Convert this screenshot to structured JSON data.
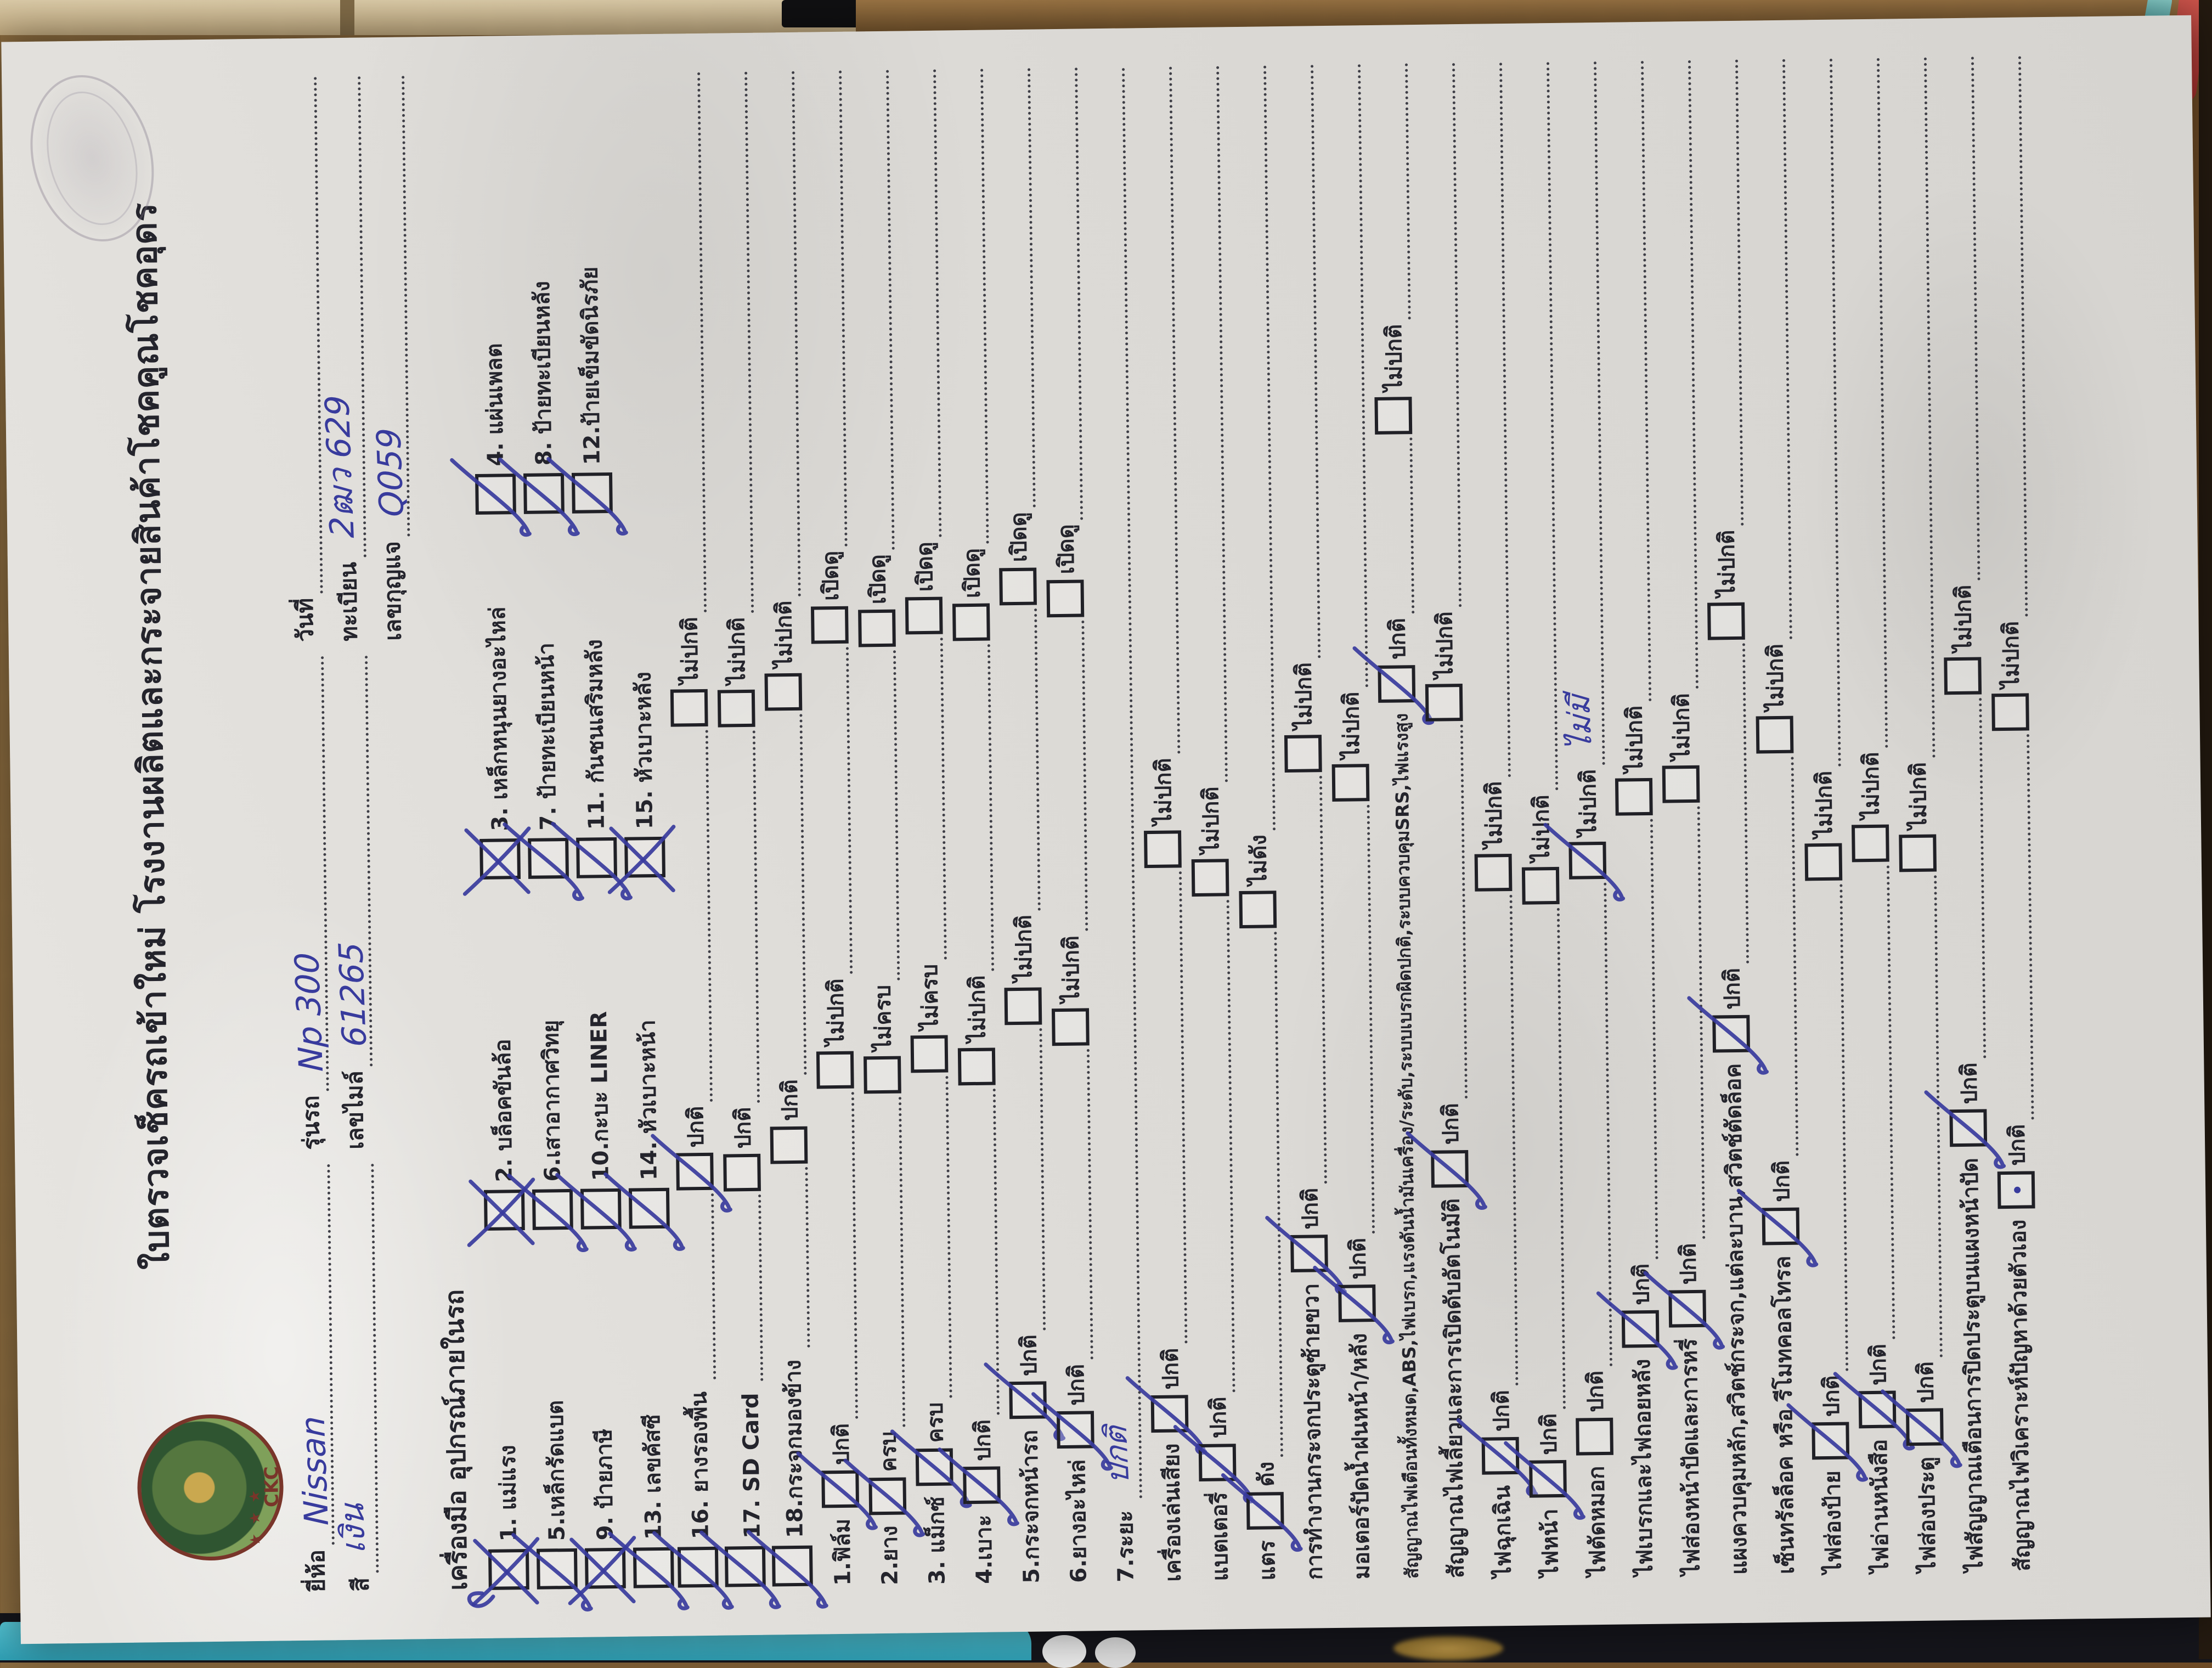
{
  "form": {
    "title": "ใบตรวจเช็ครถเข้าใหม่ โรงงานผลิตและกระจายสินค้าโชคคูณโชคอุดร",
    "logo_text": "CKC",
    "logo_stars": "★ ★ ★",
    "header_fields": [
      [
        {
          "label": "ยี่ห้อ",
          "value": "Nissan"
        },
        {
          "label": "รุ่นรถ",
          "value": "Np 300"
        },
        {
          "label": "วันที่",
          "value": ""
        }
      ],
      [
        {
          "label": "สี",
          "value": "เงิน"
        },
        {
          "label": "เลขไมล์",
          "value": "61265"
        },
        {
          "label": "ทะเบียน",
          "value": "2ฒว 629"
        }
      ],
      [
        null,
        null,
        {
          "label": "เลขกุญแจ",
          "value": "Q059"
        }
      ]
    ],
    "equipment_section": {
      "heading": "เครื่องมือ อุปกรณ์ภายในรถ",
      "items": [
        {
          "label": "1. แม่แรง",
          "mark": "xloop"
        },
        {
          "label": "2. บล็อคขันล้อ",
          "mark": "x"
        },
        {
          "label": "3. เหล็กหนุนยางอะไหล่",
          "mark": "x"
        },
        {
          "label": "4. แผ่นเพลต",
          "mark": "check"
        },
        {
          "label": "5.เหล็กรัดแบต",
          "mark": "check"
        },
        {
          "label": "6.เสาอากาศวิทยุ",
          "mark": "check"
        },
        {
          "label": "7. ป้ายทะเบียนหน้า",
          "mark": "check"
        },
        {
          "label": "8. ป้ายทะเบียนหลัง",
          "mark": "check"
        },
        {
          "label": "9. ป้ายภาษี",
          "mark": "x"
        },
        {
          "label": "10.กะบะ LINER",
          "mark": "check"
        },
        {
          "label": "11. กันชนเสริมหลัง",
          "mark": "check"
        },
        {
          "label": "12.ป้ายเข็มขัดนิรภัย",
          "mark": "check"
        },
        {
          "label": "13. เลขคัสซี",
          "mark": "check"
        },
        {
          "label": "14. หัวเบาะหน้า",
          "mark": "check"
        },
        {
          "label": "15. หัวเบาะหลัง",
          "mark": "x"
        }
      ],
      "extended_items": [
        {
          "label": "16. ยางรองพื้น",
          "lead_mark": "check",
          "options": [
            {
              "text": "ปกติ",
              "mark": "check"
            },
            {
              "text": "ไม่ปกติ",
              "mark": null
            }
          ]
        },
        {
          "label": "17. SD Card",
          "lead_mark": "check",
          "options": [
            {
              "text": "ปกติ",
              "mark": null
            },
            {
              "text": "ไม่ปกติ",
              "mark": null
            }
          ]
        },
        {
          "label": "18.กระจกมองข้าง",
          "lead_mark": "check",
          "options": [
            {
              "text": "ปกติ",
              "mark": null
            },
            {
              "text": "ไม่ปกติ",
              "mark": null
            }
          ]
        }
      ]
    },
    "checklist": [
      {
        "label": "1.ฟิล์ม",
        "options": [
          {
            "text": "ปกติ",
            "mark": "check"
          },
          {
            "text": "ไม่ปกติ",
            "mark": null
          },
          {
            "text": "เปิดดู",
            "mark": null
          }
        ]
      },
      {
        "label": "2.ยาง",
        "options": [
          {
            "text": "ครบ",
            "mark": "check"
          },
          {
            "text": "ไม่ครบ",
            "mark": null
          },
          {
            "text": "เปิดดู",
            "mark": null
          }
        ]
      },
      {
        "label": "3. แม็กซ์",
        "options": [
          {
            "text": "ครบ",
            "mark": "check"
          },
          {
            "text": "ไม่ครบ",
            "mark": null
          },
          {
            "text": "เปิดดู",
            "mark": null
          }
        ]
      },
      {
        "label": "4.เบาะ",
        "options": [
          {
            "text": "ปกติ",
            "mark": "check"
          },
          {
            "text": "ไม่ปกติ",
            "mark": null
          },
          {
            "text": "เปิดดู",
            "mark": null
          }
        ]
      },
      {
        "label": "5.กระจกหน้ารถ",
        "options": [
          {
            "text": "ปกติ",
            "mark": "check"
          },
          {
            "text": "ไม่ปกติ",
            "mark": null
          },
          {
            "text": "เปิดดู",
            "mark": null
          }
        ]
      },
      {
        "label": "6.ยางอะไหล่",
        "options": [
          {
            "text": "ปกติ",
            "mark": "check"
          },
          {
            "text": "ไม่ปกติ",
            "mark": null
          },
          {
            "text": "เปิดดู",
            "mark": null
          }
        ]
      },
      {
        "label": "7.ระยะ",
        "handwritten": "ปกติ",
        "options": []
      },
      {
        "label": "เครื่องเล่นเสียง",
        "options": [
          {
            "text": "ปกติ",
            "mark": "check"
          },
          {
            "text": "ไม่ปกติ",
            "mark": null
          }
        ]
      },
      {
        "label": "แบตเตอรี่",
        "options": [
          {
            "text": "ปกติ",
            "mark": "check"
          },
          {
            "text": "ไม่ปกติ",
            "mark": null
          }
        ]
      },
      {
        "label": "แตร",
        "options": [
          {
            "text": "ดัง",
            "mark": "check"
          },
          {
            "text": "ไม่ดัง",
            "mark": null
          }
        ]
      },
      {
        "label": "การทำงานกระจกประตูซ้ายขวา",
        "options": [
          {
            "text": "ปกติ",
            "mark": "check"
          },
          {
            "text": "ไม่ปกติ",
            "mark": null
          }
        ]
      },
      {
        "label": "มอเตอร์ปัดน้ำฝนหน้า/หลัง",
        "options": [
          {
            "text": "ปกติ",
            "mark": "check"
          },
          {
            "text": "ไม่ปกติ",
            "mark": null
          }
        ]
      },
      {
        "label": "สัญญาณไฟเตือนทั้งหมด,ABS,ไฟเบรก,แรงดันน้ำมันเครื่อง/ระดับ,ระบบเบรกผิดปกติ,ระบบควบคุมSRS,ไฟแรงสูง",
        "small": true,
        "options": [
          {
            "text": "ปกติ",
            "mark": "check"
          },
          {
            "text": "ไม่ปกติ",
            "mark": null
          }
        ]
      },
      {
        "label": "สัญญาณไฟเลี้ยวและการเปิดดับอัตโนมัติ",
        "options": [
          {
            "text": "ปกติ",
            "mark": "check"
          },
          {
            "text": "ไม่ปกติ",
            "mark": null
          }
        ]
      },
      {
        "label": "ไฟฉุกเฉิน",
        "options": [
          {
            "text": "ปกติ",
            "mark": "check"
          },
          {
            "text": "ไม่ปกติ",
            "mark": null
          }
        ]
      },
      {
        "label": "ไฟหน้า",
        "options": [
          {
            "text": "ปกติ",
            "mark": "check"
          },
          {
            "text": "ไม่ปกติ",
            "mark": null
          }
        ]
      },
      {
        "label": "ไฟตัดหมอก",
        "options": [
          {
            "text": "ปกติ",
            "mark": null
          },
          {
            "text": "ไม่ปกติ",
            "mark": "check",
            "handwritten": "ไม่มี"
          }
        ]
      },
      {
        "label": "ไฟเบรกและไฟถอยหลัง",
        "options": [
          {
            "text": "ปกติ",
            "mark": "check"
          },
          {
            "text": "ไม่ปกติ",
            "mark": null
          }
        ]
      },
      {
        "label": "ไฟส่องหน้าปัดและการหรี่",
        "options": [
          {
            "text": "ปกติ",
            "mark": "check"
          },
          {
            "text": "ไม่ปกติ",
            "mark": null
          }
        ]
      },
      {
        "label": "แผงควบคุมหลัก,สวิตช์กระจก,แต่ละบาน,สวิตช์ตัดล็อค",
        "options": [
          {
            "text": "ปกติ",
            "mark": "check"
          },
          {
            "text": "ไม่ปกติ",
            "mark": null
          }
        ]
      },
      {
        "label": "เซ็นทรัลล็อค หรือ รีโมทคอลโทรล",
        "options": [
          {
            "text": "ปกติ",
            "mark": "check"
          },
          {
            "text": "ไม่ปกติ",
            "mark": null
          }
        ]
      },
      {
        "label": "ไฟส่องป้าย",
        "options": [
          {
            "text": "ปกติ",
            "mark": "check"
          },
          {
            "text": "ไม่ปกติ",
            "mark": null
          }
        ]
      },
      {
        "label": "ไฟอ่านหนังสือ",
        "options": [
          {
            "text": "ปกติ",
            "mark": "check"
          },
          {
            "text": "ไม่ปกติ",
            "mark": null
          }
        ]
      },
      {
        "label": "ไฟส่องประตู",
        "options": [
          {
            "text": "ปกติ",
            "mark": "check"
          },
          {
            "text": "ไม่ปกติ",
            "mark": null
          }
        ]
      },
      {
        "label": "ไฟสัญญาณเตือนการปิดประตูบนแผงหน้าปัด",
        "options": [
          {
            "text": "ปกติ",
            "mark": "check"
          },
          {
            "text": "ไม่ปกติ",
            "mark": null
          }
        ]
      },
      {
        "label": "สัญญาณไฟวิเคราะห์ปัญหาด้วยตัวเอง",
        "options": [
          {
            "text": "ปกติ",
            "mark": "dot"
          },
          {
            "text": "ไม่ปกติ",
            "mark": null
          }
        ]
      }
    ]
  }
}
